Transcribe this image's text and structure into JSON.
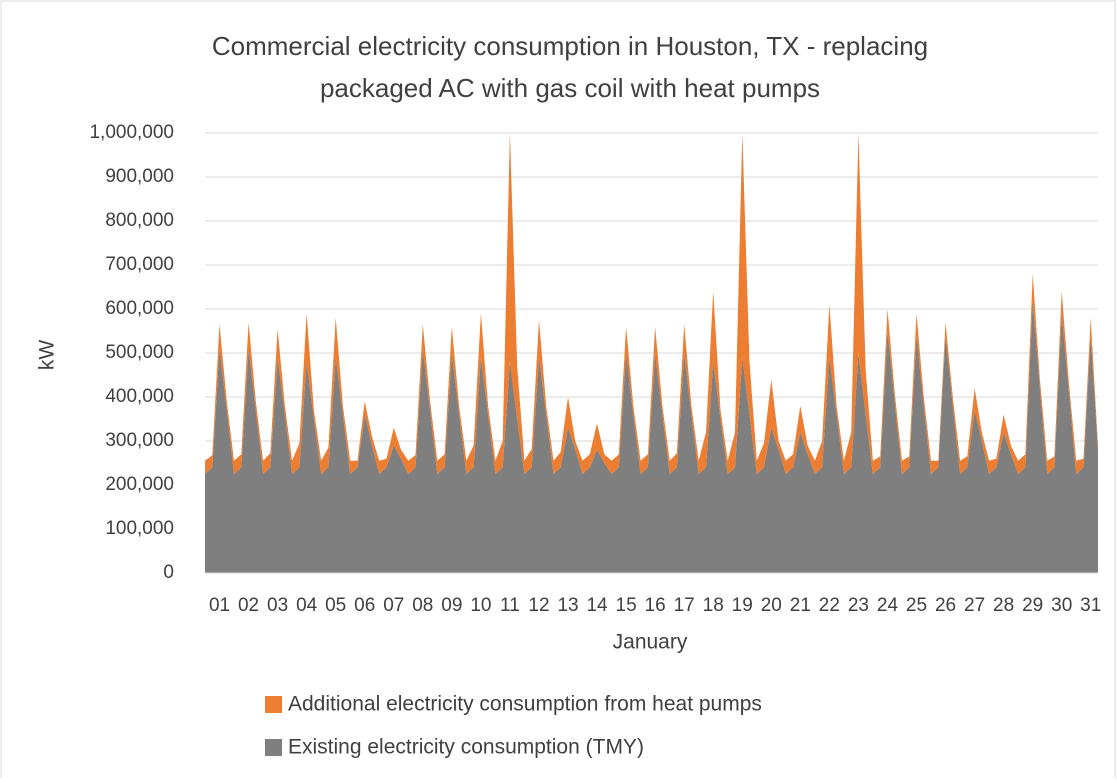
{
  "chart_data": {
    "type": "stacked_area",
    "title": "Commercial electricity consumption in Houston, TX - replacing packaged AC with gas coil with heat pumps",
    "xlabel": "January",
    "ylabel": "kW",
    "categories": [
      null,
      null,
      "01",
      null,
      null,
      null,
      "02",
      null,
      null,
      null,
      "03",
      null,
      null,
      null,
      "04",
      null,
      null,
      null,
      "05",
      null,
      null,
      null,
      "06",
      null,
      null,
      null,
      "07",
      null,
      null,
      null,
      "08",
      null,
      null,
      null,
      "09",
      null,
      null,
      null,
      "10",
      null,
      null,
      null,
      "11",
      null,
      null,
      null,
      "12",
      null,
      null,
      null,
      "13",
      null,
      null,
      null,
      "14",
      null,
      null,
      null,
      "15",
      null,
      null,
      null,
      "16",
      null,
      null,
      null,
      "17",
      null,
      null,
      null,
      "18",
      null,
      null,
      null,
      "19",
      null,
      null,
      null,
      "20",
      null,
      null,
      null,
      "21",
      null,
      null,
      null,
      "22",
      null,
      null,
      null,
      "23",
      null,
      null,
      null,
      "24",
      null,
      null,
      null,
      "25",
      null,
      null,
      null,
      "26",
      null,
      null,
      null,
      "27",
      null,
      null,
      null,
      "28",
      null,
      null,
      null,
      "29",
      null,
      null,
      null,
      "30",
      null,
      null,
      null,
      "31",
      null
    ],
    "series": [
      {
        "name": "Existing electricity consumption (TMY)",
        "color": "#7f7f7f",
        "values": [
          225000,
          240000,
          510000,
          370000,
          225000,
          240000,
          510000,
          370000,
          225000,
          240000,
          490000,
          360000,
          225000,
          240000,
          480000,
          350000,
          225000,
          240000,
          490000,
          360000,
          225000,
          240000,
          360000,
          290000,
          225000,
          240000,
          290000,
          260000,
          225000,
          240000,
          510000,
          370000,
          225000,
          240000,
          500000,
          360000,
          225000,
          240000,
          490000,
          360000,
          225000,
          240000,
          480000,
          350000,
          225000,
          240000,
          490000,
          360000,
          225000,
          240000,
          330000,
          280000,
          225000,
          240000,
          280000,
          250000,
          225000,
          240000,
          500000,
          360000,
          225000,
          240000,
          500000,
          360000,
          225000,
          240000,
          500000,
          360000,
          225000,
          240000,
          480000,
          350000,
          225000,
          240000,
          490000,
          360000,
          225000,
          240000,
          330000,
          280000,
          225000,
          240000,
          320000,
          270000,
          225000,
          240000,
          490000,
          360000,
          225000,
          240000,
          500000,
          360000,
          225000,
          240000,
          550000,
          390000,
          225000,
          240000,
          540000,
          380000,
          225000,
          240000,
          540000,
          380000,
          225000,
          240000,
          370000,
          300000,
          225000,
          240000,
          320000,
          270000,
          225000,
          240000,
          620000,
          420000,
          225000,
          240000,
          590000,
          410000,
          225000,
          240000,
          540000,
          280000
        ]
      },
      {
        "name": "Additional electricity consumption from heat pumps",
        "color": "#ed7d31",
        "values": [
          30000,
          28000,
          55000,
          20000,
          30000,
          30000,
          60000,
          20000,
          30000,
          32000,
          65000,
          20000,
          30000,
          55000,
          110000,
          20000,
          30000,
          45000,
          90000,
          20000,
          30000,
          15000,
          30000,
          20000,
          30000,
          20000,
          40000,
          20000,
          30000,
          28000,
          55000,
          20000,
          30000,
          30000,
          60000,
          20000,
          30000,
          50000,
          100000,
          20000,
          30000,
          60000,
          520000,
          120000,
          30000,
          42000,
          85000,
          20000,
          30000,
          35000,
          70000,
          20000,
          30000,
          30000,
          60000,
          20000,
          30000,
          30000,
          60000,
          20000,
          30000,
          30000,
          60000,
          20000,
          30000,
          32000,
          65000,
          20000,
          30000,
          80000,
          160000,
          20000,
          30000,
          80000,
          510000,
          120000,
          30000,
          55000,
          110000,
          20000,
          30000,
          30000,
          60000,
          20000,
          30000,
          60000,
          120000,
          20000,
          30000,
          80000,
          500000,
          100000,
          30000,
          25000,
          50000,
          20000,
          30000,
          25000,
          50000,
          20000,
          30000,
          15000,
          30000,
          20000,
          30000,
          25000,
          50000,
          20000,
          30000,
          20000,
          40000,
          20000,
          30000,
          30000,
          60000,
          20000,
          30000,
          25000,
          50000,
          20000,
          30000,
          20000,
          40000,
          10000
        ]
      }
    ],
    "ylim": [
      0,
      1000000
    ],
    "yticks": [
      0,
      {
        "value": 100000,
        "label": "100,000"
      },
      {
        "value": 200000,
        "label": "200,000"
      },
      {
        "value": 300000,
        "label": "300,000"
      },
      {
        "value": 400000,
        "label": "400,000"
      },
      {
        "value": 500000,
        "label": "500,000"
      },
      {
        "value": 600000,
        "label": "600,000"
      },
      {
        "value": 700000,
        "label": "700,000"
      },
      {
        "value": 800000,
        "label": "800,000"
      },
      {
        "value": 900000,
        "label": "900,000"
      },
      {
        "value": 1000000,
        "label": "1,000,000"
      }
    ],
    "grid": true,
    "legend": "bottom"
  }
}
